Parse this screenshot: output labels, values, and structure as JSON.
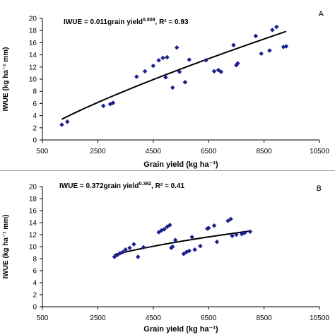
{
  "chart_data": [
    {
      "type": "scatter",
      "panel_label": "A",
      "equation": "IWUE = 0.011grain  yield",
      "equation_exp": "0.809",
      "r2_text": ",  R² = 0.93",
      "xlabel": "Grain yield  (kg ha⁻¹)",
      "ylabel": "IWUE (kg ha⁻¹ mm)",
      "xlim": [
        500,
        10500
      ],
      "ylim": [
        0,
        20
      ],
      "xticks": [
        500,
        2500,
        4500,
        6500,
        8500,
        10500
      ],
      "yticks": [
        0,
        2,
        4,
        6,
        8,
        10,
        12,
        14,
        16,
        18,
        20
      ],
      "grid": false,
      "marker_color": "#1a1f8c",
      "trend_color": "#000000",
      "trend": {
        "a": 0.011,
        "b": 0.809
      },
      "x": [
        1200,
        1400,
        2700,
        2950,
        3050,
        3900,
        4200,
        4500,
        4700,
        4850,
        4950,
        5000,
        5200,
        5350,
        5450,
        5650,
        5800,
        6400,
        6700,
        6850,
        6950,
        7400,
        7500,
        7550,
        8200,
        8400,
        8700,
        8800,
        8950,
        9200,
        9300
      ],
      "y": [
        2.5,
        3.0,
        5.6,
        5.9,
        6.1,
        10.4,
        11.3,
        12.2,
        13.1,
        13.5,
        10.3,
        13.6,
        8.6,
        15.2,
        11.2,
        9.5,
        13.2,
        13.1,
        11.3,
        11.5,
        11.2,
        15.6,
        12.3,
        12.6,
        17.1,
        14.2,
        14.7,
        18.1,
        18.6,
        15.3,
        15.4
      ]
    },
    {
      "type": "scatter",
      "panel_label": "B",
      "equation": "IWUE = 0.372grain  yield",
      "equation_exp": "0.392",
      "r2_text": ",  R² = 0.41",
      "xlabel": "Grain yield  (kg ha⁻¹)",
      "ylabel": "IWUE (kg ha⁻¹ mm)",
      "xlim": [
        500,
        10500
      ],
      "ylim": [
        0,
        20
      ],
      "xticks": [
        500,
        2500,
        4500,
        6500,
        8500,
        10500
      ],
      "yticks": [
        0,
        2,
        4,
        6,
        8,
        10,
        12,
        14,
        16,
        18,
        20
      ],
      "grid": false,
      "marker_color": "#1a1f8c",
      "trend_color": "#000000",
      "trend": {
        "a": 0.372,
        "b": 0.392
      },
      "x": [
        3100,
        3200,
        3300,
        3400,
        3500,
        3650,
        3800,
        3950,
        4150,
        4700,
        4800,
        4900,
        5000,
        5100,
        5150,
        5200,
        5300,
        5600,
        5700,
        5800,
        5900,
        6000,
        6200,
        6450,
        6500,
        6700,
        6800,
        7200,
        7300,
        7350,
        7500,
        7700,
        7800,
        8000
      ],
      "y": [
        8.3,
        8.6,
        8.9,
        9.1,
        9.5,
        9.8,
        10.4,
        8.3,
        9.9,
        12.4,
        12.7,
        12.9,
        13.3,
        13.6,
        9.8,
        10.0,
        11.1,
        8.8,
        9.1,
        9.3,
        11.6,
        9.5,
        10.1,
        13.0,
        13.1,
        13.5,
        10.8,
        14.3,
        14.6,
        11.8,
        12.0,
        12.1,
        12.3,
        12.5
      ]
    }
  ]
}
